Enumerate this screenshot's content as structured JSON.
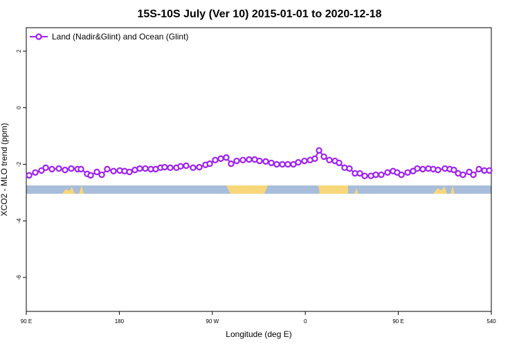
{
  "chart_data": {
    "type": "line",
    "title": "15S-10S July (Ver 10)   2015-01-01 to 2020-12-18",
    "x_label": "Longitude (deg E)",
    "y_label": "XCO2 - MLO trend (ppm)",
    "x": [
      92.7,
      98.7,
      104.7,
      108.8,
      114.8,
      121.5,
      127.5,
      133.5,
      139.6,
      142.9,
      148.9,
      152.3,
      158.3,
      163,
      168.3,
      174.4,
      180.4,
      185.1,
      189.8,
      195.1,
      199.8,
      205.2,
      210.5,
      215.2,
      219.9,
      223.9,
      229.3,
      235.3,
      239.3,
      244.7,
      251.4,
      257.4,
      263.4,
      267.5,
      272.8,
      278.2,
      283.5,
      288.2,
      293.6,
      299.6,
      305.6,
      311,
      315.7,
      321.7,
      327.1,
      332.4,
      337.8,
      343.1,
      348.5,
      353.2,
      359.2,
      364.6,
      369.2,
      373.3,
      378,
      383.3,
      388.7,
      392.7,
      398,
      402.7,
      408.1,
      412.8,
      417.5,
      423.5,
      428.2,
      433.5,
      439.6,
      444.9,
      448.9,
      453,
      459,
      464.3,
      468.4,
      473.7,
      479.1,
      483.8,
      488.4,
      495.1,
      499.8,
      503.8,
      507.9,
      512.6,
      518.6,
      522.6,
      528,
      533.3,
      538
    ],
    "series": [
      {
        "name": "Land (Nadir&Glint) and Ocean (Glint)",
        "color": "#a020f0",
        "values": [
          -2.39,
          -2.29,
          -2.22,
          -2.12,
          -2.17,
          -2.15,
          -2.2,
          -2.15,
          -2.17,
          -2.17,
          -2.34,
          -2.39,
          -2.27,
          -2.37,
          -2.17,
          -2.24,
          -2.22,
          -2.24,
          -2.27,
          -2.2,
          -2.15,
          -2.15,
          -2.17,
          -2.17,
          -2.12,
          -2.1,
          -2.12,
          -2.12,
          -2.07,
          -2.05,
          -2.12,
          -2.1,
          -2.02,
          -1.98,
          -1.85,
          -1.8,
          -1.76,
          -1.98,
          -1.88,
          -1.85,
          -1.83,
          -1.83,
          -1.88,
          -1.9,
          -1.95,
          -2.0,
          -2.0,
          -2.0,
          -2.0,
          -1.93,
          -1.88,
          -1.85,
          -1.8,
          -1.51,
          -1.73,
          -1.85,
          -1.88,
          -1.95,
          -2.12,
          -2.15,
          -2.32,
          -2.32,
          -2.41,
          -2.41,
          -2.37,
          -2.37,
          -2.29,
          -2.24,
          -2.29,
          -2.37,
          -2.29,
          -2.24,
          -2.15,
          -2.17,
          -2.15,
          -2.17,
          -2.2,
          -2.15,
          -2.17,
          -2.2,
          -2.32,
          -2.37,
          -2.27,
          -2.37,
          -2.17,
          -2.22,
          -2.22
        ]
      }
    ],
    "xlim": [
      90,
      540
    ],
    "xticks": [
      {
        "value": 90,
        "label": "90 E"
      },
      180,
      {
        "value": 270,
        "label": "90 W"
      },
      {
        "value": 360,
        "label": "0"
      },
      {
        "value": 450,
        "label": "90 E"
      },
      540
    ],
    "ylim": [
      -7.2,
      2.83
    ],
    "yticks": [
      2,
      0,
      -2,
      -4,
      -6
    ],
    "legend": "top-left"
  }
}
